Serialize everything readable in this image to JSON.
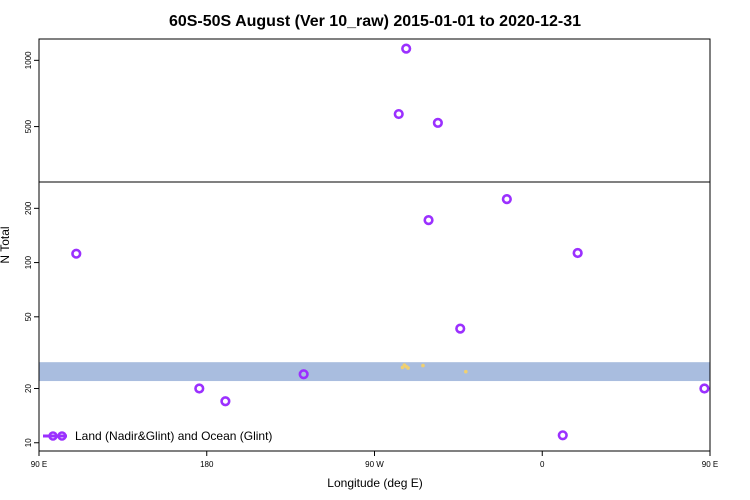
{
  "chart_data": {
    "type": "scatter",
    "title": "60S-50S August (Ver 10_raw)   2015-01-01 to 2020-12-31",
    "xlabel": "Longitude (deg E)",
    "ylabel": "N Total",
    "x_axis": {
      "range_deg_east": [
        90,
        450
      ],
      "ticks": [
        {
          "value": 90,
          "label": "90 E"
        },
        {
          "value": 180,
          "label": "180"
        },
        {
          "value": 270,
          "label": "90 W"
        },
        {
          "value": 360,
          "label": "0"
        },
        {
          "value": 450,
          "label": "90 E"
        }
      ]
    },
    "y_axis": {
      "scale": "log-with-break",
      "lower_panel": {
        "range": [
          9,
          280
        ],
        "ticks": [
          10,
          20,
          50,
          100,
          200
        ]
      },
      "upper_panel": {
        "range": [
          280,
          1250
        ],
        "ticks": [
          500,
          1000
        ]
      }
    },
    "land_band": {
      "color": "#a9bddf",
      "y_range": [
        22,
        28
      ],
      "x_range": [
        90,
        450
      ]
    },
    "land_specks": {
      "color": "#f0d070",
      "points": [
        [
          286,
          27
        ],
        [
          287,
          26.5
        ],
        [
          288,
          26
        ],
        [
          285,
          26.2
        ],
        [
          296,
          26.8
        ],
        [
          319,
          24.8
        ]
      ]
    },
    "series": [
      {
        "name": "Land (Nadir&Glint) and Ocean (Glint)",
        "color": "#9b30ff",
        "points": [
          {
            "x": 110,
            "y": 112
          },
          {
            "x": 176,
            "y": 20
          },
          {
            "x": 190,
            "y": 17
          },
          {
            "x": 232,
            "y": 24
          },
          {
            "x": 283,
            "y": 570
          },
          {
            "x": 287,
            "y": 1130
          },
          {
            "x": 299,
            "y": 172
          },
          {
            "x": 304,
            "y": 520
          },
          {
            "x": 316,
            "y": 43
          },
          {
            "x": 341,
            "y": 225
          },
          {
            "x": 371,
            "y": 11
          },
          {
            "x": 379,
            "y": 113
          },
          {
            "x": 447,
            "y": 20
          }
        ]
      }
    ],
    "legend": {
      "placement": "bottom-left"
    }
  }
}
